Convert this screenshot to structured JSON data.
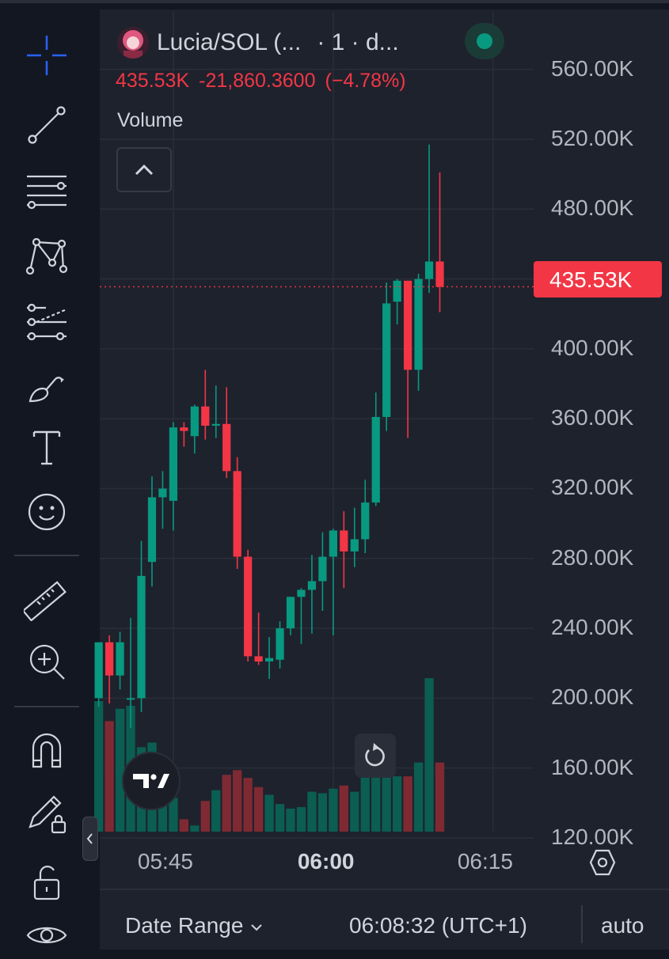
{
  "header": {
    "symbol": "Lucia/SOL (...",
    "interval": "· 1 · d...",
    "price_line": {
      "last": "435.53K",
      "change": "-21,860.3600",
      "change_pct": "(−4.78%)"
    },
    "volume_label": "Volume"
  },
  "price_axis": {
    "last_price_tag": "435.53K"
  },
  "footer": {
    "date_range_label": "Date Range",
    "clock": "06:08:32 (UTC+1)",
    "scale_mode": "auto"
  },
  "toolbar": {
    "icons": [
      "crosshair-icon",
      "trend-line-icon",
      "fib-lines-icon",
      "pattern-icon",
      "forecast-icon",
      "brush-icon",
      "text-icon",
      "emoji-icon",
      "ruler-icon",
      "zoom-in-icon",
      "magnet-icon",
      "lock-drawing-icon",
      "unlock-icon",
      "eye-icon"
    ]
  },
  "colors": {
    "up": "#089981",
    "down": "#f23645",
    "background": "#1e222d",
    "grid": "#2a2e39",
    "axis_text": "#b2b5be"
  },
  "chart_data": {
    "type": "candlestick",
    "y_axis": {
      "ticks": [
        120000,
        160000,
        200000,
        240000,
        280000,
        320000,
        360000,
        400000,
        440000,
        480000,
        520000,
        560000
      ],
      "tick_labels": [
        "120.00K",
        "160.00K",
        "200.00K",
        "240.00K",
        "280.00K",
        "320.00K",
        "360.00K",
        "400.00K",
        "",
        "480.00K",
        "520.00K",
        "560.00K"
      ],
      "ylim": [
        115000,
        568000
      ]
    },
    "x_axis": {
      "tick_labels": [
        "05:45",
        "06:00",
        "06:15"
      ],
      "tick_minutes": [
        345,
        360,
        375
      ],
      "xlim": [
        338.1,
        378.8
      ]
    },
    "last_price": 435530,
    "candles": [
      {
        "t": "05:38",
        "o": 200000,
        "h": 232000,
        "l": 195000,
        "c": 232000,
        "vol": 85
      },
      {
        "t": "05:39",
        "o": 232000,
        "h": 236000,
        "l": 197000,
        "c": 213000,
        "vol": 72
      },
      {
        "t": "05:40",
        "o": 213000,
        "h": 238000,
        "l": 205000,
        "c": 232000,
        "vol": 80
      },
      {
        "t": "05:41",
        "o": 200000,
        "h": 246000,
        "l": 183000,
        "c": 200000,
        "vol": 82
      },
      {
        "t": "05:42",
        "o": 200000,
        "h": 290000,
        "l": 192000,
        "c": 270000,
        "vol": 55
      },
      {
        "t": "05:43",
        "o": 278000,
        "h": 327000,
        "l": 264000,
        "c": 315000,
        "vol": 58
      },
      {
        "t": "05:44",
        "o": 315000,
        "h": 330000,
        "l": 297000,
        "c": 320000,
        "vol": 35
      },
      {
        "t": "05:45",
        "o": 313000,
        "h": 358000,
        "l": 296000,
        "c": 355000,
        "vol": 22
      },
      {
        "t": "05:46",
        "o": 355000,
        "h": 358000,
        "l": 344000,
        "c": 353000,
        "vol": 8
      },
      {
        "t": "05:47",
        "o": 350000,
        "h": 368000,
        "l": 340000,
        "c": 367000,
        "vol": 4
      },
      {
        "t": "05:48",
        "o": 367000,
        "h": 388000,
        "l": 348000,
        "c": 356000,
        "vol": 20
      },
      {
        "t": "05:49",
        "o": 356000,
        "h": 379000,
        "l": 349000,
        "c": 357000,
        "vol": 27
      },
      {
        "t": "05:50",
        "o": 357000,
        "h": 378000,
        "l": 326000,
        "c": 330000,
        "vol": 37
      },
      {
        "t": "05:51",
        "o": 330000,
        "h": 338000,
        "l": 274000,
        "c": 281000,
        "vol": 40
      },
      {
        "t": "05:52",
        "o": 281000,
        "h": 285000,
        "l": 221000,
        "c": 224000,
        "vol": 35
      },
      {
        "t": "05:53",
        "o": 224000,
        "h": 249000,
        "l": 219000,
        "c": 221000,
        "vol": 29
      },
      {
        "t": "05:54",
        "o": 221000,
        "h": 235000,
        "l": 211000,
        "c": 223000,
        "vol": 24
      },
      {
        "t": "05:55",
        "o": 222000,
        "h": 244000,
        "l": 217000,
        "c": 240000,
        "vol": 18
      },
      {
        "t": "05:56",
        "o": 240000,
        "h": 258000,
        "l": 236000,
        "c": 258000,
        "vol": 15
      },
      {
        "t": "05:57",
        "o": 258000,
        "h": 263000,
        "l": 231000,
        "c": 262000,
        "vol": 16
      },
      {
        "t": "05:58",
        "o": 262000,
        "h": 282000,
        "l": 237000,
        "c": 267000,
        "vol": 26
      },
      {
        "t": "05:59",
        "o": 267000,
        "h": 295000,
        "l": 250000,
        "c": 281000,
        "vol": 25
      },
      {
        "t": "06:00",
        "o": 281000,
        "h": 297000,
        "l": 236000,
        "c": 296000,
        "vol": 28
      },
      {
        "t": "06:01",
        "o": 296000,
        "h": 307000,
        "l": 263000,
        "c": 284000,
        "vol": 30
      },
      {
        "t": "06:02",
        "o": 284000,
        "h": 309000,
        "l": 275000,
        "c": 291000,
        "vol": 26
      },
      {
        "t": "06:03",
        "o": 291000,
        "h": 325000,
        "l": 283000,
        "c": 312000,
        "vol": 41
      },
      {
        "t": "06:04",
        "o": 312000,
        "h": 375000,
        "l": 310000,
        "c": 361000,
        "vol": 62
      },
      {
        "t": "06:05",
        "o": 361000,
        "h": 438000,
        "l": 353000,
        "c": 426000,
        "vol": 46
      },
      {
        "t": "06:06",
        "o": 427000,
        "h": 440000,
        "l": 414000,
        "c": 439000,
        "vol": 36
      },
      {
        "t": "06:07",
        "o": 439000,
        "h": 439000,
        "l": 349000,
        "c": 388000,
        "vol": 36
      },
      {
        "t": "06:08",
        "o": 388000,
        "h": 443000,
        "l": 376000,
        "c": 440000,
        "vol": 45
      },
      {
        "t": "06:09",
        "o": 440000,
        "h": 517000,
        "l": 432000,
        "c": 450000,
        "vol": 100
      },
      {
        "t": "06:10",
        "o": 450000,
        "h": 501000,
        "l": 421000,
        "c": 435530,
        "vol": 45
      }
    ]
  }
}
